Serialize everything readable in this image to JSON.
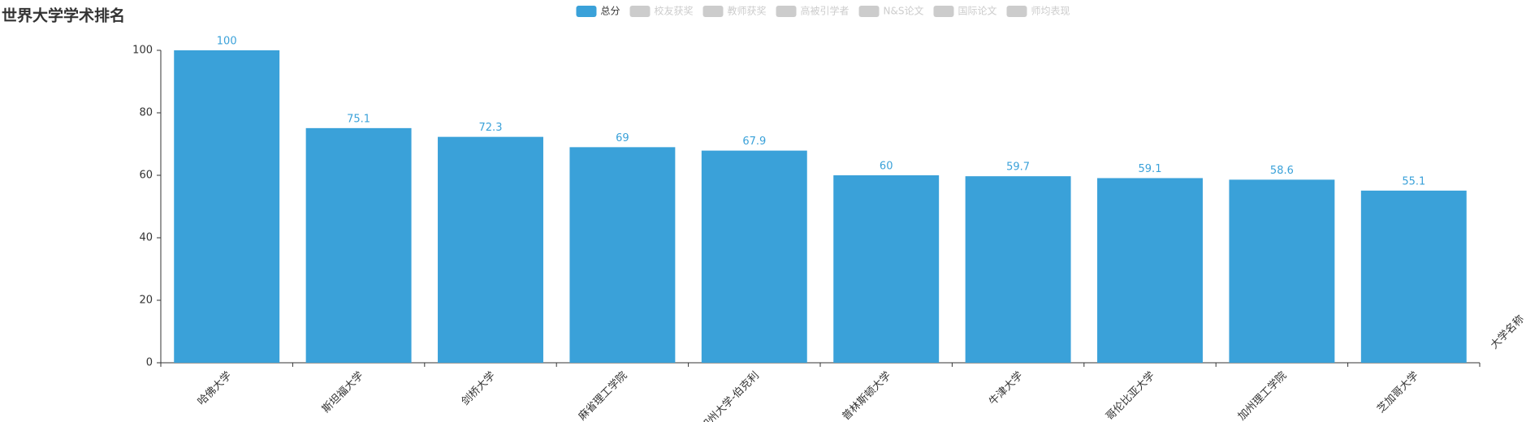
{
  "chart_data": {
    "type": "bar",
    "title": "世界大学学术排名",
    "x_label": "大学名称",
    "categories": [
      "哈佛大学",
      "斯坦福大学",
      "剑桥大学",
      "麻省理工学院",
      "加州大学-伯克利",
      "普林斯顿大学",
      "牛津大学",
      "哥伦比亚大学",
      "加州理工学院",
      "芝加哥大学"
    ],
    "series": [
      {
        "name": "总分",
        "color": "#3aa1d9",
        "values": [
          100,
          75.1,
          72.3,
          69,
          67.9,
          60,
          59.7,
          59.1,
          58.6,
          55.1
        ]
      }
    ],
    "hidden_series": [
      {
        "name": "校友获奖"
      },
      {
        "name": "教师获奖"
      },
      {
        "name": "高被引学者"
      },
      {
        "name": "N&S论文"
      },
      {
        "name": "国际论文"
      },
      {
        "name": "师均表现"
      }
    ],
    "hidden_color": "#cccccc",
    "ylim": [
      0,
      100
    ],
    "yticks": [
      0,
      20,
      40,
      60,
      80,
      100
    ],
    "grid": false,
    "legend": "top"
  }
}
